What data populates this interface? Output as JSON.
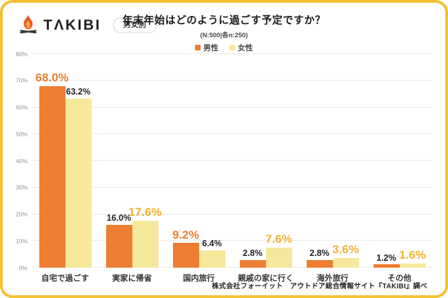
{
  "logo": {
    "brand": "TΛKIBI",
    "icon": "campfire-icon",
    "badge": "男女別"
  },
  "header": {
    "title": "年末年始はどのように過ごす予定ですか？",
    "subtitle": "(N:500|各n:250)"
  },
  "legend": [
    {
      "label": "男性",
      "swatch_color": "#ED7D31"
    },
    {
      "label": "女性",
      "swatch_color": "#F6E89B"
    }
  ],
  "colors": {
    "male_bar": "#ED7D31",
    "female_bar": "#F6E89B",
    "male_label_highlight": "#ED7D31",
    "female_label_highlight": "#F0B232",
    "card_border": "#F4C133",
    "gridline": "#EAEAEA"
  },
  "chart_data": {
    "type": "bar",
    "title": "年末年始はどのように過ごす予定ですか？",
    "subtitle": "(N:500|各n:250)",
    "categories": [
      "自宅で過ごす",
      "実家に帰省",
      "国内旅行",
      "親戚の家に行く",
      "海外旅行",
      "その他"
    ],
    "series": [
      {
        "name": "男性",
        "color": "#ED7D31",
        "values": [
          68.0,
          16.0,
          9.2,
          2.8,
          2.8,
          1.2
        ]
      },
      {
        "name": "女性",
        "color": "#F6E89B",
        "values": [
          63.2,
          17.6,
          6.4,
          7.6,
          3.6,
          1.6
        ]
      }
    ],
    "value_label_format": "{value}%",
    "highlight_rule": "larger value per category shown big in series color",
    "xlabel": "",
    "ylabel": "",
    "ylim": [
      0,
      80
    ],
    "yticks": [
      0,
      10,
      20,
      30,
      40,
      50,
      60,
      70,
      80
    ],
    "ytick_format": "{value}%",
    "grid": "horizontal",
    "legend_position": "top-center"
  },
  "footer": "株式会社フォーイット　アウトドア総合情報サイト『TAKIBI』調べ"
}
